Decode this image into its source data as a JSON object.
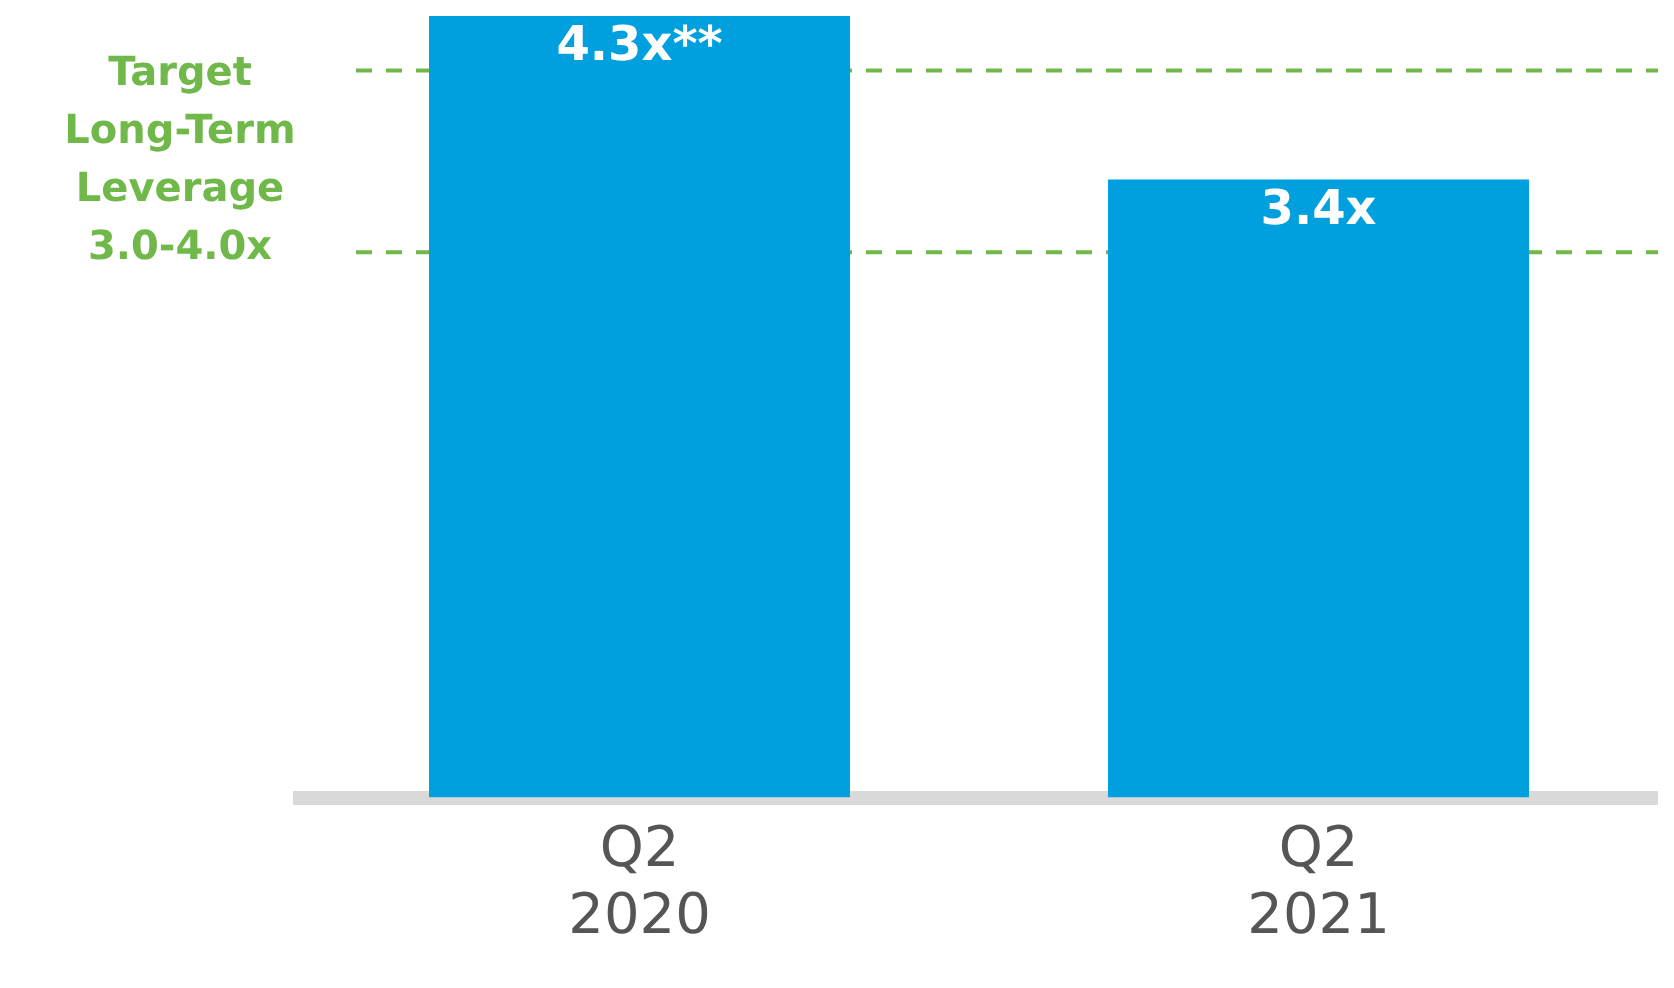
{
  "chart_data": {
    "type": "bar",
    "categories": [
      "Q2 2020",
      "Q2 2021"
    ],
    "values": [
      4.3,
      3.4
    ],
    "value_labels": [
      "4.3x**",
      "3.4x"
    ],
    "color": "#00a0de",
    "ylim": [
      0,
      4.3
    ],
    "tick_labels": "x",
    "grid": false,
    "legend": false,
    "ref_lines": [
      {
        "axis": "y",
        "value": 4.0,
        "color": "#70b84a",
        "line_style": "dashed"
      },
      {
        "axis": "y",
        "value": 3.0,
        "color": "#70b84a",
        "line_style": "dashed"
      }
    ],
    "annotations": [
      "Target Long-Term Leverage 3.0-4.0x"
    ]
  }
}
